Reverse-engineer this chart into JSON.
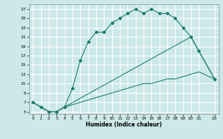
{
  "title": "",
  "xlabel": "Humidex (Indice chaleur)",
  "bg_color": "#cce8e8",
  "grid_color": "#ffffff",
  "line_color": "#1a7a6e",
  "xlim": [
    -0.5,
    23.5
  ],
  "ylim": [
    4.5,
    28
  ],
  "xticks": [
    0,
    1,
    2,
    3,
    4,
    5,
    6,
    7,
    8,
    9,
    10,
    11,
    12,
    13,
    14,
    15,
    16,
    17,
    18,
    19,
    20,
    21,
    23
  ],
  "yticks": [
    5,
    7,
    9,
    11,
    13,
    15,
    17,
    19,
    21,
    23,
    25,
    27
  ],
  "line1_x": [
    0,
    1,
    2,
    3,
    4,
    5,
    6,
    7,
    8,
    9,
    10,
    11,
    12,
    13,
    14,
    15,
    16,
    17,
    18,
    19,
    20,
    21,
    23
  ],
  "line1_y": [
    7,
    6,
    5,
    5,
    6,
    10,
    16,
    20,
    22,
    22,
    24,
    25,
    26,
    27,
    26,
    27,
    26,
    26,
    25,
    23,
    21,
    18,
    12
  ],
  "line2_x": [
    0,
    2,
    3,
    4,
    20,
    23
  ],
  "line2_y": [
    7,
    5,
    5,
    6,
    21,
    12
  ],
  "line3_x": [
    0,
    2,
    3,
    4,
    5,
    6,
    7,
    8,
    9,
    10,
    11,
    12,
    13,
    14,
    15,
    16,
    17,
    18,
    19,
    20,
    21,
    23
  ],
  "line3_y": [
    7,
    5,
    5,
    6,
    6.5,
    7,
    7.5,
    8,
    8.5,
    9,
    9.5,
    10,
    10.5,
    11,
    11,
    11.5,
    12,
    12,
    12.5,
    13,
    13.5,
    12
  ]
}
